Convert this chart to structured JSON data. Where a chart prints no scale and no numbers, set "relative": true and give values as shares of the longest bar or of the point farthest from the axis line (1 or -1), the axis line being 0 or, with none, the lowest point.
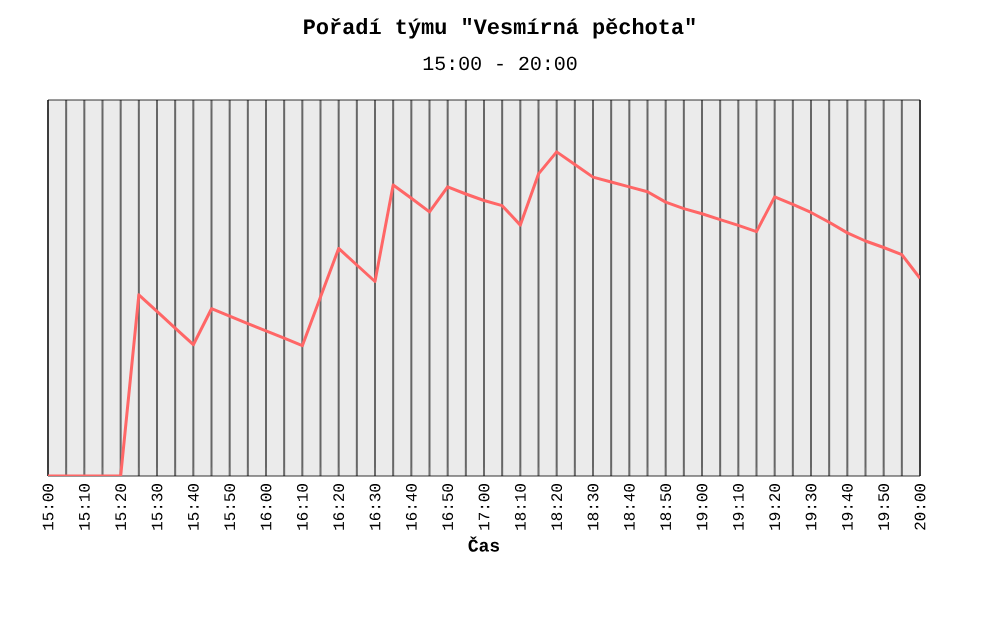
{
  "chart_data": {
    "type": "line",
    "title": "Pořadí týmu \"Vesmírná pěchota\"",
    "subtitle": "15:00 - 20:00",
    "xlabel": "Čas",
    "relative": true,
    "grid": "x",
    "marker": "none",
    "line_style": "solid",
    "categories": [
      "15:00",
      null,
      "15:10",
      null,
      "15:20",
      null,
      "15:30",
      null,
      "15:40",
      null,
      "15:50",
      null,
      "16:00",
      null,
      "16:10",
      null,
      "16:20",
      null,
      "16:30",
      null,
      "16:40",
      null,
      "16:50",
      null,
      "17:00",
      null,
      "18:10",
      null,
      "18:20",
      null,
      "18:30",
      null,
      "18:40",
      null,
      "18:50",
      null,
      "19:00",
      null,
      "19:10",
      null,
      "19:20",
      null,
      "19:30",
      null,
      "19:40",
      null,
      "19:50",
      null,
      "20:00"
    ],
    "series": [
      {
        "color": "#ff6666",
        "values": [
          0,
          0,
          0,
          0,
          0,
          0.559,
          0.508,
          0.456,
          0.405,
          0.516,
          0.493,
          0.47,
          0.448,
          0.425,
          0.402,
          0.552,
          0.702,
          0.651,
          0.6,
          0.898,
          0.857,
          0.815,
          0.892,
          0.87,
          0.85,
          0.834,
          0.774,
          0.932,
          1,
          0.961,
          0.922,
          0.907,
          0.892,
          0.877,
          0.845,
          0.825,
          0.809,
          0.791,
          0.773,
          0.754,
          0.861,
          0.838,
          0.813,
          0.783,
          0.75,
          0.725,
          0.705,
          0.683,
          0.61
        ]
      }
    ]
  }
}
